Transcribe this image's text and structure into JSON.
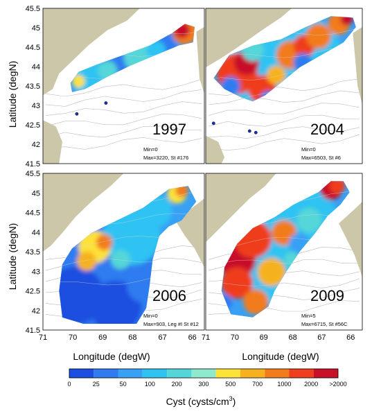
{
  "chart_data": {
    "type": "heatmap",
    "xlabel": "Longitude (degW)",
    "ylabel": "Latitude (degN)",
    "x_ticks": [
      "71",
      "70",
      "69",
      "68",
      "67",
      "66"
    ],
    "y_ticks": [
      "45.5",
      "45",
      "44.5",
      "44",
      "43.5",
      "43",
      "42.5",
      "42",
      "41.5"
    ],
    "xlim": [
      71,
      65.6
    ],
    "ylim": [
      41.5,
      45.5
    ],
    "panels": [
      {
        "year": "1997",
        "min_label": "Min=0",
        "max_label": "Max=3220, St #176"
      },
      {
        "year": "2004",
        "min_label": "Min=0",
        "max_label": "Max=6503, St #6"
      },
      {
        "year": "2006",
        "min_label": "Min=0",
        "max_label": "Max=903, Leg #I St #12"
      },
      {
        "year": "2009",
        "min_label": "Min=5",
        "max_label": "Max=6715, St #56C"
      }
    ],
    "colorbar": {
      "title": "Cyst (cysts/cm",
      "title_sup": "3",
      "title_end": ")",
      "tick_labels": [
        "0",
        "25",
        "50",
        "100",
        "200",
        "300",
        "500",
        "700",
        "1000",
        "2000",
        ">2000"
      ],
      "colors": [
        "#1c4fe0",
        "#2f7bef",
        "#38a0f5",
        "#2fc3f2",
        "#54d6d8",
        "#8ee9cf",
        "#fde23a",
        "#f6b21e",
        "#f27c1c",
        "#ef3d1f",
        "#c8102b"
      ]
    },
    "colors": {
      "land": "#cdc7a9",
      "water": "#ffffff",
      "contour": "#bcbcbc"
    }
  }
}
